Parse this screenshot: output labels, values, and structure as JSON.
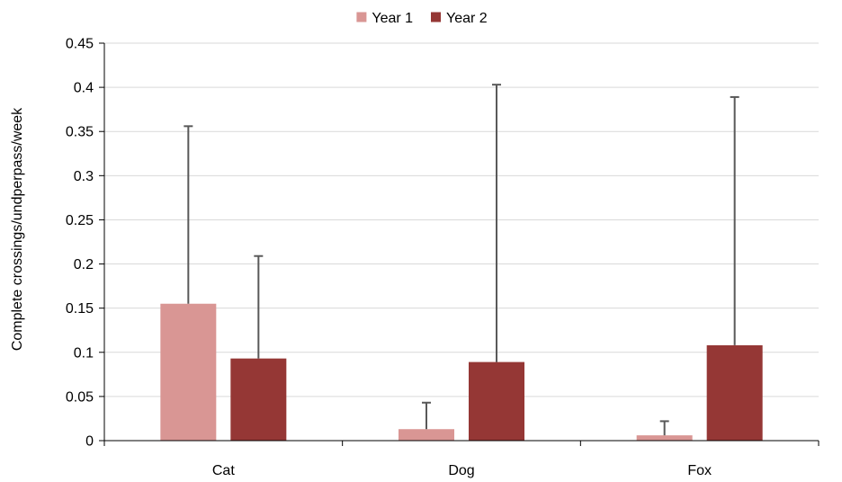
{
  "chart_data": {
    "type": "bar",
    "title": "",
    "xlabel": "",
    "ylabel": "Complete crossings/undperpass/week",
    "categories": [
      "Cat",
      "Dog",
      "Fox"
    ],
    "series": [
      {
        "name": "Year 1",
        "color": "#d99694",
        "values": [
          0.155,
          0.013,
          0.006
        ],
        "error_upper": [
          0.356,
          0.043,
          0.022
        ]
      },
      {
        "name": "Year 2",
        "color": "#953735",
        "values": [
          0.093,
          0.089,
          0.108
        ],
        "error_upper": [
          0.209,
          0.403,
          0.389
        ]
      }
    ],
    "ylim": [
      0,
      0.45
    ],
    "yticks": [
      0,
      0.05,
      0.1,
      0.15,
      0.2,
      0.25,
      0.3,
      0.35,
      0.4,
      0.45
    ],
    "ytick_labels": [
      "0",
      "0.05",
      "0.1",
      "0.15",
      "0.2",
      "0.25",
      "0.3",
      "0.35",
      "0.4",
      "0.45"
    ],
    "grid": true,
    "legend_position": "top-center",
    "error_bar_color": "#595959"
  }
}
